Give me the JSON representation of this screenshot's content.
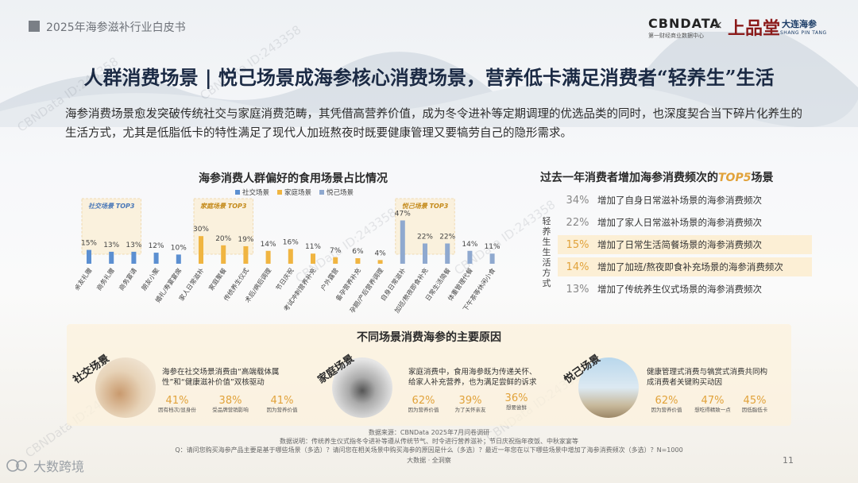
{
  "header": {
    "doc_title": "2025年海参滋补行业白皮书",
    "logo_cbn": "CBNDATA",
    "logo_cbn_sub": "第一财经商业数据中心",
    "logo_x": "×",
    "logo_brand": "上品堂",
    "logo_brand_cn": "大连海参",
    "logo_brand_en": "SHANG PIN TANG"
  },
  "title": "人群消费场景 | 悦己场景成海参核心消费场景，营养低卡满足消费者“轻养生”生活",
  "intro": "海参消费场景愈发突破传统社交与家庭消费范畴，其凭借高营养价值，成为冬令进补等定期调理的优选品类的同时，也深度契合当下碎片化养生的生活方式，尤其是低脂低卡的特性满足了现代人加班熬夜时既要健康管理又要犒劳自己的隐形需求。",
  "chart_data": {
    "type": "bar",
    "title": "海参消费人群偏好的食用场景占比情况",
    "legend": [
      "社交场景",
      "家庭场景",
      "悦己场景"
    ],
    "colors": {
      "社交场景": "#5b8fd1",
      "家庭场景": "#f0b541",
      "悦己场景": "#8fa9cf"
    },
    "group_tags": [
      "社交场景 TOP3",
      "家庭场景 TOP3",
      "悦己场景 TOP3"
    ],
    "ylim": [
      0,
      50
    ],
    "categories": [
      "亲友礼赠",
      "商务礼赠",
      "商务宴请",
      "朋友小聚",
      "婚礼/寿宴宴席",
      "家人日常滋补",
      "家庭聚餐",
      "传统养生仪式",
      "术后/病后调理",
      "节日庆祝",
      "考试冲刺营养补充",
      "户外露营",
      "备孕营养补充",
      "孕期/产后营养调理",
      "自身日常滋补",
      "加班/熬夜即食补充",
      "日常生活简餐",
      "体重管理代餐",
      "下午茶等休闲小食"
    ],
    "values": [
      15,
      13,
      13,
      12,
      10,
      30,
      20,
      19,
      14,
      16,
      11,
      7,
      6,
      4,
      47,
      22,
      22,
      14,
      11
    ],
    "value_labels": [
      "15%",
      "13%",
      "13%",
      "12%",
      "10%",
      "30%",
      "20%",
      "19%",
      "14%",
      "16%",
      "11%",
      "7%",
      "6%",
      "4%",
      "47%",
      "22%",
      "22%",
      "14%",
      "11%"
    ],
    "groups": [
      "社交场景",
      "社交场景",
      "社交场景",
      "社交场景",
      "社交场景",
      "家庭场景",
      "家庭场景",
      "家庭场景",
      "家庭场景",
      "家庭场景",
      "家庭场景",
      "家庭场景",
      "家庭场景",
      "家庭场景",
      "悦己场景",
      "悦己场景",
      "悦己场景",
      "悦己场景",
      "悦己场景"
    ]
  },
  "right_panel": {
    "title_prefix": "过去一年消费者增加海参消费频次的",
    "title_em": "TOP5",
    "title_suffix": "场景",
    "side_label": "轻养生生活方式",
    "rows": [
      {
        "pct": "34%",
        "text": "增加了自身日常滋补场景的海参消费频次",
        "highlight": false
      },
      {
        "pct": "22%",
        "text": "增加了家人日常滋补场景的海参消费频次",
        "highlight": false
      },
      {
        "pct": "15%",
        "text": "增加了日常生活简餐场景的海参消费频次",
        "highlight": true
      },
      {
        "pct": "14%",
        "text": "增加了加班/熬夜即食补充场景的海参消费频次",
        "highlight": true
      },
      {
        "pct": "13%",
        "text": "增加了传统养生仪式场景的海参消费频次",
        "highlight": false
      }
    ]
  },
  "bottom": {
    "title": "不同场景消费海参的主要原因",
    "cards": [
      {
        "tag": "社交场景",
        "reason": "海参在社交场景消费由“高端载体属性”和“健康滋补价值”双核驱动",
        "stats": [
          {
            "n": "41%",
            "l": "因有档次/显身份"
          },
          {
            "n": "38%",
            "l": "受品牌营销影响"
          },
          {
            "n": "41%",
            "l": "因为营养价值"
          }
        ]
      },
      {
        "tag": "家庭场景",
        "reason": "家庭消费中，食用海参既为传递关怀、给家人补充营养，也为满足尝鲜的诉求",
        "stats": [
          {
            "n": "62%",
            "l": "因为营养价值"
          },
          {
            "n": "39%",
            "l": "为了关怀亲友"
          },
          {
            "n": "36%",
            "l": "想要尝鲜"
          }
        ]
      },
      {
        "tag": "悦己场景",
        "reason": "健康管理式消费与犒赏式消费共同构成消费者关键购买动因",
        "stats": [
          {
            "n": "62%",
            "l": "因为营养价值"
          },
          {
            "n": "47%",
            "l": "想吃得精致一点"
          },
          {
            "n": "45%",
            "l": "因低脂低卡"
          }
        ]
      }
    ]
  },
  "footer": {
    "source": "数据来源：CBNData 2025年7月问卷调研",
    "note": "数据说明：传统养生仪式指冬令进补等遵从传统节气、时令进行营养滋补；节日庆祝指年夜饭、中秋家宴等",
    "question": "Q：请问您购买海参产品主要是基于哪些场景（多选）？请问您在相关场景中购买海参的原因是什么（多选）？最近一年您在以下哪些场景中增加了海参消费频次（多选）？N=1000",
    "credit": "大数据 · 全洞察",
    "page": "11",
    "wm_logo": "大数跨境",
    "watermark": "CBNData ID:243358"
  }
}
